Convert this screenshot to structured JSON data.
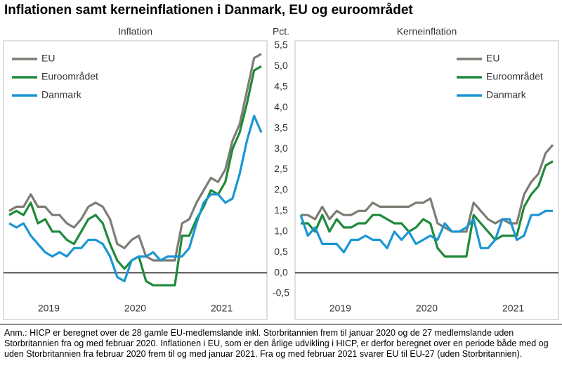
{
  "title": "Inflationen samt kerneinflationen i Danmark, EU og euroområdet",
  "note": "Anm.: HICP er beregnet over de 28 gamle EU-medlemslande inkl. Storbritannien frem til januar 2020 og de 27 medlemslande uden Storbritannien fra og med februar 2020. Inflationen i EU, som er den årlige udvikling i HICP, er derfor beregnet over en periode både med og uden Storbritannien fra februar 2020 frem til og med januar 2021. Fra og med februar 2021 svarer EU til EU-27 (uden Storbritannien).",
  "chart_data": [
    {
      "type": "line",
      "title": "Inflation",
      "ylabel": "Pct.",
      "legend": "upper left",
      "categories": [
        null,
        null,
        null,
        null,
        null,
        "2019",
        null,
        null,
        null,
        null,
        null,
        null,
        null,
        null,
        null,
        null,
        null,
        "2020",
        null,
        null,
        null,
        null,
        null,
        null,
        null,
        null,
        null,
        null,
        null,
        "2021",
        null,
        null,
        null,
        null,
        null,
        null
      ],
      "ylim": [
        -0.5,
        5.5
      ],
      "yticks": [
        {
          "value": -0.5,
          "label": "-0,5"
        },
        {
          "value": 0,
          "label": "0,0"
        },
        {
          "value": 0.5,
          "label": "0,5"
        },
        {
          "value": 1,
          "label": "1,0"
        },
        {
          "value": 1.5,
          "label": "1,5"
        },
        {
          "value": 2,
          "label": "2,0"
        },
        {
          "value": 2.5,
          "label": "2,5"
        },
        {
          "value": 3,
          "label": "3,0"
        },
        {
          "value": 3.5,
          "label": "3,5"
        },
        {
          "value": 4,
          "label": "4,0"
        },
        {
          "value": 4.5,
          "label": "4,5"
        },
        {
          "value": 5,
          "label": "5,0"
        },
        {
          "value": 5.5,
          "label": "5,5"
        }
      ],
      "series": [
        {
          "name": "EU",
          "color": "#7f7b75",
          "values": [
            1.5,
            1.6,
            1.6,
            1.9,
            1.6,
            1.6,
            1.4,
            1.4,
            1.2,
            1.1,
            1.3,
            1.6,
            1.7,
            1.6,
            1.3,
            0.7,
            0.6,
            0.8,
            0.9,
            0.4,
            0.3,
            0.3,
            0.3,
            0.3,
            1.2,
            1.3,
            1.7,
            2.0,
            2.3,
            2.2,
            2.5,
            3.2,
            3.6,
            4.4,
            5.2,
            5.3
          ]
        },
        {
          "name": "Euroområdet",
          "color": "#1e8a3a",
          "values": [
            1.4,
            1.5,
            1.4,
            1.7,
            1.2,
            1.3,
            1.0,
            1.0,
            0.8,
            0.7,
            1.0,
            1.3,
            1.4,
            1.2,
            0.7,
            0.3,
            0.1,
            0.3,
            0.4,
            -0.2,
            -0.3,
            -0.3,
            -0.3,
            -0.3,
            0.9,
            0.9,
            1.3,
            1.6,
            2.0,
            1.9,
            2.2,
            3.0,
            3.4,
            4.1,
            4.9,
            5.0
          ]
        },
        {
          "name": "Danmark",
          "color": "#1a96d4",
          "values": [
            1.2,
            1.1,
            1.2,
            0.9,
            0.7,
            0.5,
            0.4,
            0.5,
            0.4,
            0.6,
            0.6,
            0.8,
            0.8,
            0.7,
            0.4,
            -0.1,
            -0.2,
            0.3,
            0.4,
            0.4,
            0.5,
            0.3,
            0.4,
            0.4,
            0.4,
            0.6,
            1.2,
            1.7,
            1.9,
            1.9,
            1.7,
            1.8,
            2.4,
            3.2,
            3.8,
            3.4
          ]
        }
      ]
    },
    {
      "type": "line",
      "title": "Kerneinflation",
      "legend": "upper right",
      "categories": [
        null,
        null,
        null,
        null,
        null,
        "2019",
        null,
        null,
        null,
        null,
        null,
        null,
        null,
        null,
        null,
        null,
        null,
        "2020",
        null,
        null,
        null,
        null,
        null,
        null,
        null,
        null,
        null,
        null,
        null,
        "2021",
        null,
        null,
        null,
        null,
        null,
        null
      ],
      "ylim": [
        -0.5,
        5.5
      ],
      "series": [
        {
          "name": "EU",
          "color": "#7f7b75",
          "values": [
            1.4,
            1.4,
            1.3,
            1.6,
            1.3,
            1.5,
            1.4,
            1.4,
            1.5,
            1.5,
            1.7,
            1.6,
            1.6,
            1.6,
            1.6,
            1.6,
            1.7,
            1.7,
            1.8,
            1.2,
            1.1,
            1.0,
            1.0,
            1.0,
            1.7,
            1.5,
            1.3,
            1.2,
            1.3,
            1.2,
            1.2,
            1.9,
            2.2,
            2.4,
            2.9,
            3.1
          ]
        },
        {
          "name": "Euroområdet",
          "color": "#1e8a3a",
          "values": [
            1.2,
            1.2,
            1.0,
            1.4,
            1.0,
            1.3,
            1.1,
            1.1,
            1.2,
            1.2,
            1.4,
            1.4,
            1.3,
            1.2,
            1.2,
            1.0,
            1.1,
            1.3,
            1.2,
            0.6,
            0.4,
            0.4,
            0.4,
            0.4,
            1.4,
            1.2,
            1.0,
            0.8,
            0.9,
            0.9,
            0.9,
            1.6,
            1.9,
            2.1,
            2.6,
            2.7
          ]
        },
        {
          "name": "Danmark",
          "color": "#1a96d4",
          "values": [
            1.4,
            0.9,
            1.1,
            0.7,
            0.7,
            0.7,
            0.5,
            0.8,
            0.8,
            0.9,
            0.8,
            0.8,
            0.6,
            1.0,
            0.8,
            1.0,
            0.7,
            0.8,
            0.9,
            0.8,
            1.2,
            1.0,
            1.0,
            1.1,
            1.3,
            0.6,
            0.6,
            0.8,
            1.3,
            1.3,
            0.8,
            0.9,
            1.4,
            1.4,
            1.5,
            1.5
          ]
        }
      ]
    }
  ]
}
